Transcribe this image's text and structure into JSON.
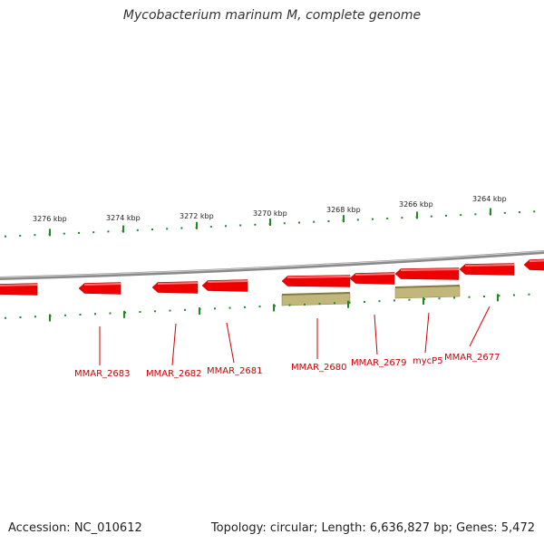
{
  "title": "Mycobacterium marinum M, complete genome",
  "footer": {
    "accession": "Accession: NC_010612",
    "summary": "Topology: circular; Length: 6,636,827 bp; Genes: 5,472"
  },
  "colors": {
    "gene": "#ee0000",
    "gene_highlight": "#ff7070",
    "cds": "#c2b77a",
    "cds_edge": "#857a45",
    "backbone": "#8a8a8a",
    "tick": "#1f8a1f",
    "label": "#cc0000"
  },
  "scale_labels": [
    "3276 kbp",
    "3274 kbp",
    "3272 kbp",
    "3270 kbp",
    "3268 kbp",
    "3266 kbp",
    "3264 kbp"
  ],
  "gene_labels": [
    "MMAR_2683",
    "MMAR_2682",
    "MMAR_2681",
    "MMAR_2680",
    "MMAR_2679",
    "mycP5",
    "MMAR_2677"
  ]
}
